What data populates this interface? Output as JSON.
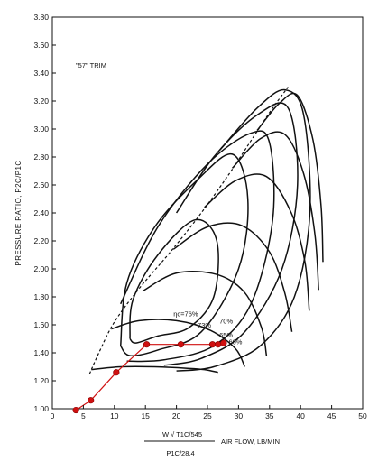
{
  "chart_data": {
    "type": "line",
    "trim_label": "\"57\" TRIM",
    "ylabel": "PRESSURE RATIO, P2C/P1C",
    "xlabel": {
      "corrected_flow_top": "W √ T1C/545",
      "corrected_flow_bottom": "P1C/28.4",
      "air_flow": "AIR FLOW, LB/MIN"
    },
    "xlim": [
      0,
      50
    ],
    "ylim": [
      1.0,
      3.8
    ],
    "x_ticks": [
      "0",
      "5",
      "10",
      "15",
      "20",
      "25",
      "30",
      "35",
      "40",
      "45",
      "50"
    ],
    "y_ticks": [
      "1.00",
      "1.20",
      "1.40",
      "1.60",
      "1.80",
      "2.00",
      "2.20",
      "2.40",
      "2.60",
      "2.80",
      "3.00",
      "3.20",
      "3.40",
      "3.60",
      "3.80"
    ],
    "grid": false,
    "efficiency_labels": [
      {
        "text": "ηc=76%",
        "x": 21.5,
        "y": 1.66
      },
      {
        "text": "73%",
        "x": 24.5,
        "y": 1.58
      },
      {
        "text": "70%",
        "x": 28.0,
        "y": 1.61
      },
      {
        "text": "65%",
        "x": 28.0,
        "y": 1.51
      },
      {
        "text": "60%",
        "x": 29.5,
        "y": 1.46
      }
    ],
    "surge_line": {
      "x": [
        6.0,
        7.5,
        10.0,
        14.0,
        19.0,
        24.0,
        28.5,
        32.5,
        35.5,
        38.0
      ],
      "y": [
        1.25,
        1.4,
        1.62,
        1.86,
        2.12,
        2.4,
        2.68,
        2.95,
        3.15,
        3.3
      ]
    },
    "speed_lines": [
      {
        "x": [
          6.3,
          11.0,
          16.5,
          21.5,
          24.5,
          26.7
        ],
        "y": [
          1.28,
          1.3,
          1.3,
          1.29,
          1.28,
          1.26
        ]
      },
      {
        "x": [
          9.5,
          14.0,
          20.0,
          25.5,
          29.5,
          31.0
        ],
        "y": [
          1.57,
          1.63,
          1.63,
          1.56,
          1.43,
          1.3
        ]
      },
      {
        "x": [
          14.5,
          20.0,
          26.5,
          31.0,
          33.7,
          34.5
        ],
        "y": [
          1.84,
          1.97,
          1.96,
          1.83,
          1.58,
          1.38
        ]
      },
      {
        "x": [
          19.5,
          25.0,
          30.5,
          35.0,
          37.5,
          38.6
        ],
        "y": [
          2.14,
          2.3,
          2.31,
          2.12,
          1.82,
          1.55
        ]
      },
      {
        "x": [
          24.5,
          29.5,
          34.5,
          38.5,
          40.7,
          41.4
        ],
        "y": [
          2.44,
          2.63,
          2.66,
          2.4,
          2.05,
          1.7
        ]
      },
      {
        "x": [
          29.0,
          33.5,
          37.5,
          40.5,
          42.3,
          42.9
        ],
        "y": [
          2.72,
          2.93,
          2.96,
          2.68,
          2.25,
          1.85
        ]
      },
      {
        "x": [
          33.0,
          36.5,
          39.5,
          42.0,
          43.3,
          43.6
        ],
        "y": [
          2.99,
          3.18,
          3.24,
          2.92,
          2.45,
          2.05
        ]
      }
    ],
    "efficiency_contours": [
      {
        "x": [
          12.5,
          13.0,
          17.0,
          23.0,
          26.5,
          26.0,
          22.0,
          17.0,
          13.5,
          12.5
        ],
        "y": [
          1.5,
          1.78,
          2.1,
          2.35,
          2.2,
          1.8,
          1.58,
          1.52,
          1.47,
          1.5
        ]
      },
      {
        "x": [
          11.0,
          12.0,
          16.5,
          23.0,
          29.0,
          31.5,
          30.0,
          24.0,
          17.0,
          12.5,
          11.0
        ],
        "y": [
          1.45,
          1.9,
          2.3,
          2.62,
          2.82,
          2.5,
          2.0,
          1.55,
          1.42,
          1.38,
          1.45
        ]
      },
      {
        "x": [
          11.0,
          17.0,
          25.0,
          32.0,
          35.0,
          35.5,
          32.0,
          26.0,
          18.0,
          12.0
        ],
        "y": [
          1.75,
          2.3,
          2.75,
          2.97,
          2.9,
          2.35,
          1.75,
          1.45,
          1.35,
          1.34
        ]
      },
      {
        "x": [
          20.0,
          26.0,
          33.0,
          38.0,
          39.5,
          37.0,
          31.0,
          24.0,
          18.0
        ],
        "y": [
          2.4,
          2.8,
          3.1,
          3.15,
          2.6,
          2.0,
          1.55,
          1.36,
          1.31
        ]
      },
      {
        "x": [
          27.0,
          33.0,
          37.5,
          40.5,
          41.5,
          39.0,
          33.5,
          26.0,
          20.0
        ],
        "y": [
          2.85,
          3.15,
          3.28,
          3.1,
          2.4,
          1.8,
          1.45,
          1.3,
          1.27
        ]
      }
    ],
    "operating_points": {
      "x": [
        3.8,
        6.2,
        10.3,
        15.2,
        20.7,
        25.8,
        26.7,
        27.6
      ],
      "y": [
        0.99,
        1.06,
        1.26,
        1.46,
        1.46,
        1.46,
        1.46,
        1.47
      ]
    },
    "colors": {
      "map_lines": "#111111",
      "operating_line": "#d01010",
      "background": "#ffffff"
    }
  }
}
